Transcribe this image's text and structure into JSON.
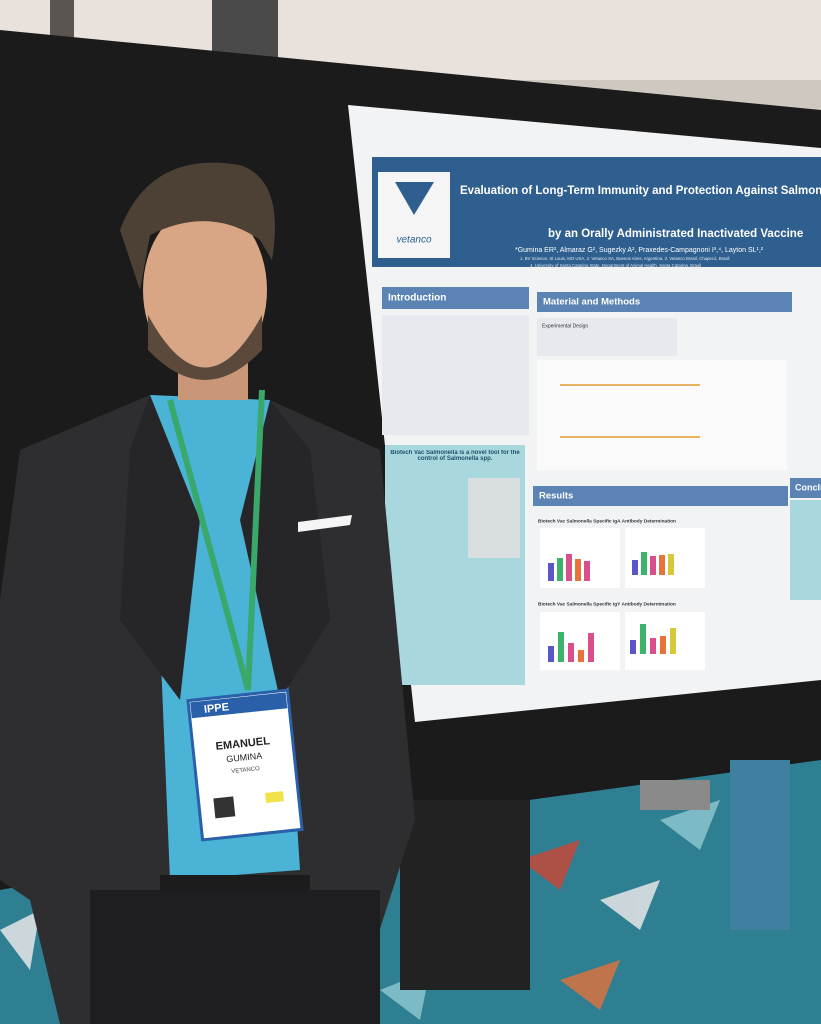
{
  "poster": {
    "logo": "vetanco",
    "title_line1": "Evaluation of Long-Term Immunity and Protection Against Salmon",
    "title_line2": "by an Orally Administrated Inactivated Vaccine",
    "authors": "*Gumina ER², Almaraz G², Sugezky A², Praxedes-Campagnoni I³,⁴, Layton SL¹,²",
    "affiliation1": "1. BV Science, St Louis, MO USA, 2. Vetanco SA, Buenos Aires, Argentina, 3. Vetanco Brasil, Chapecó, Brasil",
    "affiliation2": "4. University of Santa Catarina State, Department of Animal Health, Santa Catarina, Brasil",
    "section_introduction": "Introduction",
    "section_methods": "Material and Methods",
    "section_results": "Results",
    "section_conclusion": "Conclu",
    "subhead_design": "Experimental Design",
    "highlight": "Biotech Vac Salmonella is a novel tool for the control of Salmonella spp.",
    "figure_iga": "Biotech Vac Salmonella Specific IgA Antibody Determination",
    "figure_igy": "Biotech Vac Salmonella Specific IgY Antibody Determination"
  },
  "badge": {
    "event": "IPPE",
    "first_name": "EMANUEL",
    "last_name": "GUMINA",
    "company": "VETANCO"
  }
}
